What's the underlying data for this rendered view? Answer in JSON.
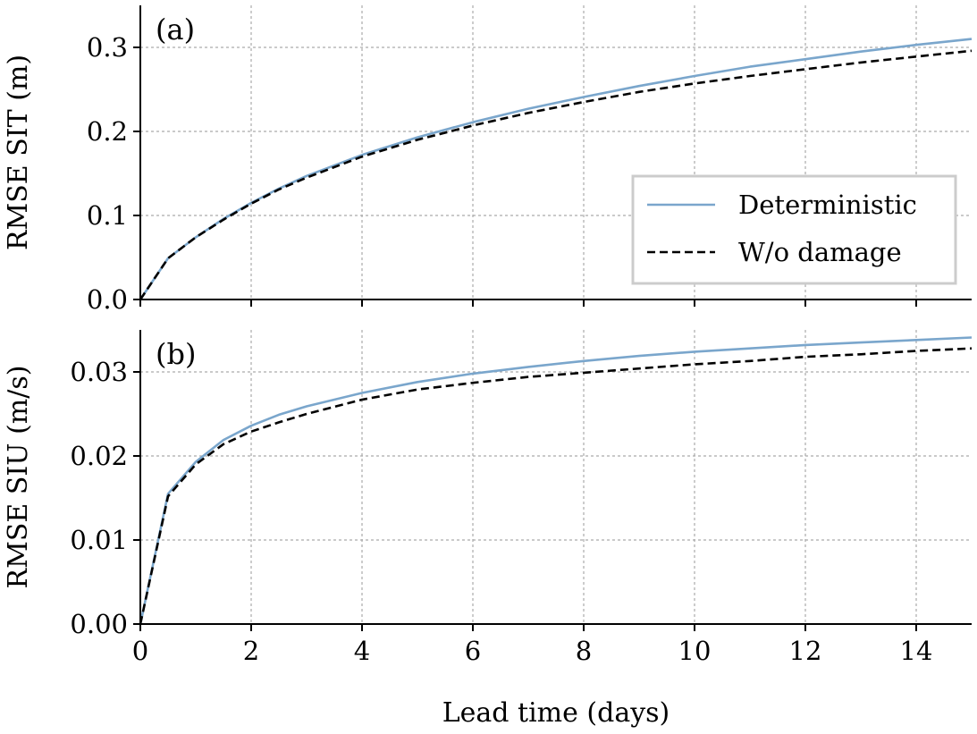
{
  "chart_data": {
    "type": "line",
    "xlabel": "Lead time (days)",
    "xlim": [
      0,
      15
    ],
    "xticks": [
      0,
      2,
      4,
      6,
      8,
      10,
      12,
      14
    ],
    "xtick_labels": [
      "0",
      "2",
      "4",
      "6",
      "8",
      "10",
      "12",
      "14"
    ],
    "grid": true,
    "legend": {
      "placement": "lower-right of panel (a)",
      "entries": [
        {
          "name": "Deterministic",
          "color": "#7aa6cc",
          "style": "solid"
        },
        {
          "name": "W/o damage",
          "color": "#000000",
          "style": "dashed"
        }
      ]
    },
    "panels": [
      {
        "label": "(a)",
        "ylabel": "RMSE SIT (m)",
        "ylim": [
          0,
          0.35
        ],
        "yticks": [
          0,
          0.1,
          0.2,
          0.3
        ],
        "ytick_labels": [
          "0.0",
          "0.1",
          "0.2",
          "0.3"
        ],
        "x": [
          0,
          0.5,
          1,
          1.5,
          2,
          2.5,
          3,
          4,
          5,
          6,
          7,
          8,
          9,
          10,
          11,
          12,
          13,
          14,
          15
        ],
        "series": [
          {
            "name": "Deterministic",
            "values": [
              0,
              0.049,
              0.074,
              0.096,
              0.115,
              0.132,
              0.147,
              0.172,
              0.193,
              0.211,
              0.227,
              0.241,
              0.254,
              0.266,
              0.277,
              0.286,
              0.295,
              0.303,
              0.31
            ]
          },
          {
            "name": "W/o damage",
            "values": [
              0,
              0.049,
              0.074,
              0.095,
              0.114,
              0.131,
              0.145,
              0.17,
              0.19,
              0.207,
              0.222,
              0.235,
              0.247,
              0.257,
              0.266,
              0.274,
              0.282,
              0.289,
              0.296
            ]
          }
        ]
      },
      {
        "label": "(b)",
        "ylabel": "RMSE SIU (m/s)",
        "ylim": [
          0,
          0.035
        ],
        "yticks": [
          0,
          0.01,
          0.02,
          0.03
        ],
        "ytick_labels": [
          "0.00",
          "0.01",
          "0.02",
          "0.03"
        ],
        "x": [
          0,
          0.5,
          1,
          1.5,
          2,
          2.5,
          3,
          4,
          5,
          6,
          7,
          8,
          9,
          10,
          11,
          12,
          13,
          14,
          15
        ],
        "series": [
          {
            "name": "Deterministic",
            "values": [
              0,
              0.0155,
              0.0193,
              0.0219,
              0.0236,
              0.0249,
              0.0259,
              0.0275,
              0.0288,
              0.0298,
              0.0306,
              0.0313,
              0.0319,
              0.0324,
              0.0328,
              0.0332,
              0.0335,
              0.0338,
              0.0341
            ]
          },
          {
            "name": "W/o damage",
            "values": [
              0,
              0.0152,
              0.019,
              0.0214,
              0.0229,
              0.024,
              0.025,
              0.0267,
              0.0279,
              0.0287,
              0.0294,
              0.0299,
              0.0304,
              0.0309,
              0.0313,
              0.0318,
              0.0321,
              0.0325,
              0.0328
            ]
          }
        ]
      }
    ]
  }
}
